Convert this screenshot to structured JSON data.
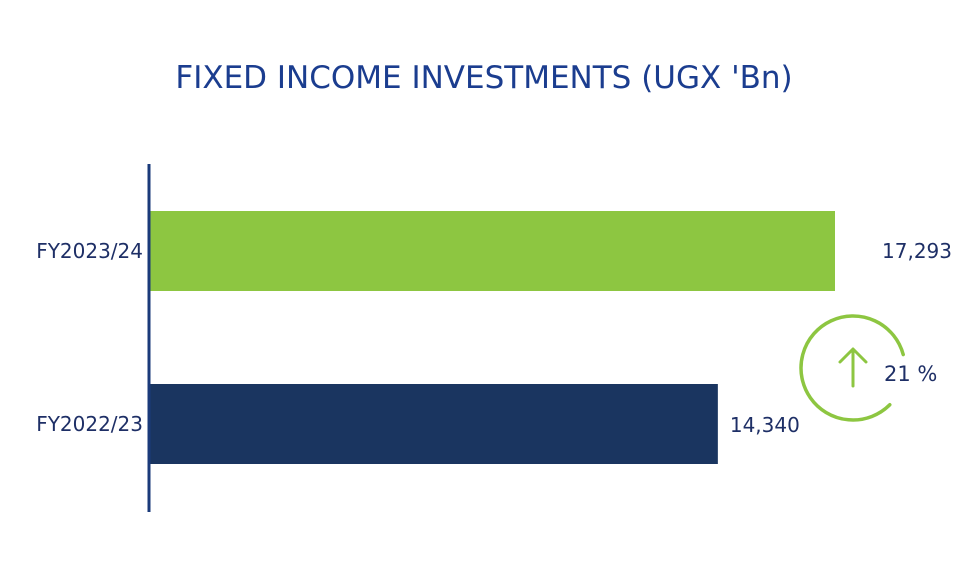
{
  "chart_data": {
    "type": "bar",
    "orientation": "horizontal",
    "title": "FIXED INCOME INVESTMENTS (UGX 'Bn)",
    "categories": [
      "FY2023/24",
      "FY2022/23"
    ],
    "values": [
      17293,
      14340
    ],
    "value_labels": [
      "17,293",
      "14,340"
    ],
    "xlim": [
      0,
      20000
    ],
    "grid": false,
    "legend": "none",
    "colors": [
      "#8dc641",
      "#1a3560"
    ],
    "annotation": {
      "text": "21 %",
      "icon": "up-arrow-icon",
      "color": "#8dc641"
    }
  },
  "colors": {
    "title": "#1b3d8f",
    "axis": "#1a3a7a",
    "label": "#1e2f66"
  }
}
